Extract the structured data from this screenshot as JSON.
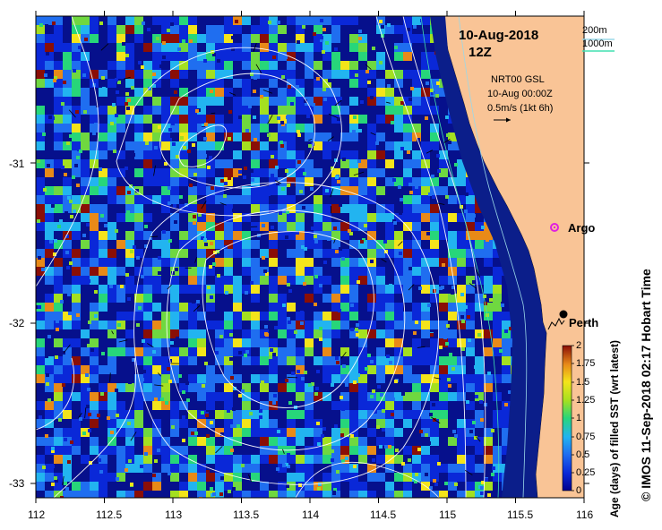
{
  "map": {
    "title_date": "10-Aug-2018",
    "title_time": "12Z",
    "legend_200m": "200m",
    "legend_1000m": "1000m",
    "current_source": "NRT00 GSL",
    "current_time": "10-Aug 00:00Z",
    "current_scale": "0.5m/s (1kt 6h)",
    "place_argo": "Argo",
    "place_perth": "Perth",
    "copyright": "© IMOS 11-Sep-2018 02:17 Hobart Time",
    "colorbar_label": "Age (days) of filled SST (wrt latest)",
    "colorbar_ticks": [
      "2",
      "1.75",
      "1.5",
      "1.25",
      "1",
      "0.75",
      "0.5",
      "0.25",
      "0"
    ],
    "x_ticks": [
      "112",
      "112.5",
      "113",
      "113.5",
      "114",
      "114.5",
      "115",
      "115.5",
      "116"
    ],
    "y_ticks": [
      "-31",
      "-32",
      "-33"
    ],
    "colors": {
      "land": "#f9c496",
      "coast_dark": "#0b1e8a",
      "argo_marker": "#e020e0",
      "isobath_1000": "#40e0b0",
      "contour": "#ffffff"
    }
  }
}
